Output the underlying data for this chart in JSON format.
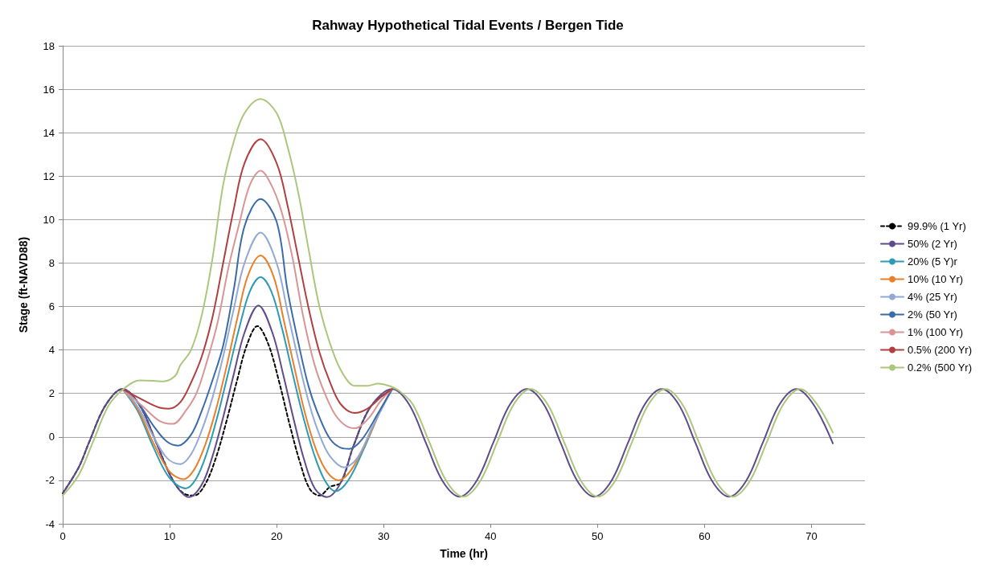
{
  "chart_data": {
    "type": "line",
    "title": "Rahway Hypothetical Tidal Events / Bergen Tide",
    "xlabel": "Time (hr)",
    "ylabel": "Stage (ft-NAVD88)",
    "xlim": [
      0,
      75
    ],
    "xticks": [
      0,
      10,
      20,
      30,
      40,
      50,
      60,
      70
    ],
    "ylim": [
      -4,
      18
    ],
    "yticks": [
      -4,
      -2,
      0,
      2,
      4,
      6,
      8,
      10,
      12,
      14,
      16,
      18
    ],
    "grid": "y",
    "legend": "right",
    "marker": "none",
    "series": [
      {
        "name": "99.9% (1 Yr)",
        "color": "#000000",
        "line_style": "dashed",
        "x": [
          0,
          1.5,
          2.45,
          4,
          5.6,
          7.2,
          8.75,
          10.3,
          11.3,
          12.3,
          13.3,
          14.3,
          15.3,
          16.3,
          17.2,
          18.2,
          19.2,
          20.2,
          21.2,
          22.2,
          23.1,
          24,
          25,
          26,
          27.2,
          28.8,
          30.8
        ],
        "values": [
          -2.6,
          -1.4,
          -0.27,
          1.45,
          2.2,
          1.45,
          -0.27,
          -2.0,
          -2.6,
          -2.7,
          -2.2,
          -1.0,
          0.7,
          2.6,
          4.2,
          5.1,
          4.3,
          2.6,
          0.6,
          -1.2,
          -2.4,
          -2.7,
          -2.3,
          -2.1,
          -0.4,
          1.4,
          2.2
        ]
      },
      {
        "name": "50% (2 Yr)",
        "color": "#5f4b8b",
        "line_style": "solid",
        "x": [
          0,
          1.5,
          2.45,
          4,
          5.6,
          7.2,
          8.75,
          10.3,
          11.8,
          13,
          14,
          15,
          16,
          17,
          18.3,
          19.6,
          20.6,
          21.6,
          22.6,
          23.6,
          24.7,
          26,
          27.2,
          28.8,
          30.8,
          32.4,
          33.95,
          35.5,
          37.1,
          38.7,
          40.25,
          41.8,
          43.4,
          45,
          46.55,
          48.1,
          49.7,
          51.3,
          52.85,
          54.4,
          56,
          57.6,
          59.15,
          60.7,
          62.3,
          63.9,
          65.45,
          67,
          68.6,
          70.2,
          72
        ],
        "values": [
          -2.6,
          -1.4,
          -0.27,
          1.45,
          2.2,
          1.45,
          -0.27,
          -2.0,
          -2.77,
          -2.2,
          -0.9,
          0.9,
          2.9,
          4.8,
          6.05,
          4.8,
          2.9,
          0.8,
          -1.1,
          -2.4,
          -2.77,
          -2.1,
          -0.4,
          1.4,
          2.2,
          1.48,
          -0.27,
          -2.02,
          -2.75,
          -2.02,
          -0.27,
          1.48,
          2.2,
          1.48,
          -0.27,
          -2.02,
          -2.75,
          -2.02,
          -0.27,
          1.48,
          2.2,
          1.48,
          -0.27,
          -2.02,
          -2.75,
          -2.02,
          -0.27,
          1.48,
          2.2,
          1.48,
          -0.3
        ]
      },
      {
        "name": "20% (5 Y)r",
        "color": "#2e9bb5",
        "line_style": "solid",
        "x": [
          5.6,
          7,
          8.5,
          10,
          11.5,
          12.5,
          13.5,
          14.5,
          15.5,
          16.5,
          17.5,
          18.5,
          19.5,
          20.5,
          21.5,
          22.5,
          23.5,
          24.5,
          25.5,
          26.7,
          28.2,
          29.7,
          30.8
        ],
        "values": [
          2.2,
          1.2,
          -0.5,
          -1.9,
          -2.37,
          -1.9,
          -0.7,
          1.0,
          3.0,
          5.0,
          6.7,
          7.35,
          6.7,
          5.0,
          2.9,
          0.9,
          -0.8,
          -2.0,
          -2.5,
          -2.0,
          -0.5,
          1.2,
          2.2
        ]
      },
      {
        "name": "10% (10 Yr)",
        "color": "#e8812c",
        "line_style": "solid",
        "x": [
          5.6,
          7,
          8.5,
          10,
          11.3,
          12.3,
          13.3,
          14.3,
          15.3,
          16.3,
          17.3,
          18.5,
          19.7,
          20.7,
          21.7,
          22.7,
          23.7,
          24.7,
          25.8,
          27,
          28.5,
          29.8,
          30.8
        ],
        "values": [
          2.2,
          1.3,
          -0.3,
          -1.6,
          -1.95,
          -1.5,
          -0.4,
          1.2,
          3.2,
          5.4,
          7.4,
          8.35,
          7.4,
          5.3,
          3.1,
          1.0,
          -0.6,
          -1.6,
          -2.0,
          -1.5,
          -0.1,
          1.3,
          2.2
        ]
      },
      {
        "name": "4% (25 Yr)",
        "color": "#93a9d5",
        "line_style": "solid",
        "x": [
          5.6,
          7,
          8.5,
          9.8,
          11,
          12,
          13,
          14,
          15,
          16,
          17,
          18.5,
          20,
          21,
          22,
          23,
          24,
          25,
          26.3,
          27.5,
          29,
          30.8
        ],
        "values": [
          2.2,
          1.4,
          0,
          -1.0,
          -1.25,
          -0.8,
          0.3,
          1.8,
          3.7,
          5.9,
          8.0,
          9.4,
          8.0,
          5.8,
          3.6,
          1.6,
          0.1,
          -0.9,
          -1.4,
          -1.0,
          0.5,
          2.2
        ]
      },
      {
        "name": "2% (50 Yr)",
        "color": "#3b6ba8",
        "line_style": "solid",
        "x": [
          5.6,
          7,
          8.5,
          9.7,
          10.8,
          12,
          13,
          14,
          15,
          16,
          17,
          18.5,
          20,
          21,
          22,
          23,
          24,
          25,
          26,
          26.8,
          28,
          29.5,
          30.8
        ],
        "values": [
          2.2,
          1.6,
          0.5,
          -0.2,
          -0.4,
          0.1,
          1.2,
          2.6,
          4.2,
          6.8,
          9.7,
          10.95,
          9.9,
          6.8,
          4.4,
          2.3,
          0.9,
          -0.1,
          -0.5,
          -0.55,
          -0.1,
          1.1,
          2.2
        ]
      },
      {
        "name": "1% (100 Yr)",
        "color": "#d99594",
        "line_style": "solid",
        "x": [
          5.6,
          7.5,
          9,
          10.3,
          11.5,
          12.5,
          13.5,
          14.5,
          15.5,
          16.5,
          17.5,
          18.5,
          19.5,
          20.5,
          21.5,
          22.5,
          23.5,
          24.5,
          25.5,
          26.5,
          27.3,
          28.5,
          29.8,
          30.8
        ],
        "values": [
          2.2,
          1.4,
          0.75,
          0.6,
          1.2,
          2.0,
          3.5,
          5.3,
          7.8,
          9.8,
          11.6,
          12.25,
          11.6,
          10.3,
          8.2,
          5.5,
          3.4,
          2.0,
          1.0,
          0.5,
          0.4,
          0.8,
          1.7,
          2.2
        ]
      },
      {
        "name": "0.5% (200 Yr)",
        "color": "#b23f3f",
        "line_style": "solid",
        "x": [
          5.6,
          7.5,
          9,
          9.9,
          11,
          12,
          13,
          14,
          15,
          16,
          17,
          18.5,
          20,
          21,
          22,
          23,
          24,
          25,
          26,
          27.3,
          28.5,
          29.8,
          30.8
        ],
        "values": [
          2.2,
          1.7,
          1.35,
          1.3,
          1.6,
          2.5,
          3.7,
          5.5,
          8,
          10.5,
          12.6,
          13.7,
          12.6,
          10.7,
          8.3,
          5.9,
          3.9,
          2.5,
          1.5,
          1.1,
          1.3,
          1.85,
          2.2
        ]
      },
      {
        "name": "0.2% (500 Yr)",
        "color": "#aac77c",
        "line_style": "solid",
        "x": [
          0,
          1.5,
          2.8,
          4.3,
          5.8,
          7.2,
          8.5,
          9.4,
          10.5,
          11,
          12,
          13,
          14,
          15,
          16,
          17,
          18.5,
          20,
          21,
          22,
          23,
          24,
          25.2,
          26.2,
          27.3,
          28.5,
          29.5,
          30.5,
          31.5,
          32.75,
          34.3,
          35.85,
          37.45,
          39.05,
          40.6,
          42.15,
          43.75,
          45.35,
          46.9,
          48.45,
          50.05,
          51.65,
          53.2,
          54.75,
          56.35,
          57.95,
          59.5,
          61.05,
          62.65,
          64.25,
          65.8,
          67.35,
          68.95,
          70.55,
          72
        ],
        "values": [
          -2.7,
          -1.75,
          -0.27,
          1.45,
          2.25,
          2.6,
          2.58,
          2.55,
          2.8,
          3.3,
          4,
          5.6,
          8.2,
          11.6,
          13.6,
          14.9,
          15.55,
          14.9,
          13.4,
          11.3,
          8.6,
          6,
          4,
          2.9,
          2.35,
          2.35,
          2.45,
          2.35,
          2.1,
          1.48,
          -0.27,
          -2.02,
          -2.75,
          -2.02,
          -0.27,
          1.48,
          2.2,
          1.48,
          -0.27,
          -2.02,
          -2.75,
          -2.02,
          -0.27,
          1.48,
          2.2,
          1.48,
          -0.27,
          -2.02,
          -2.75,
          -2.02,
          -0.27,
          1.48,
          2.2,
          1.48,
          0.2
        ]
      }
    ]
  }
}
